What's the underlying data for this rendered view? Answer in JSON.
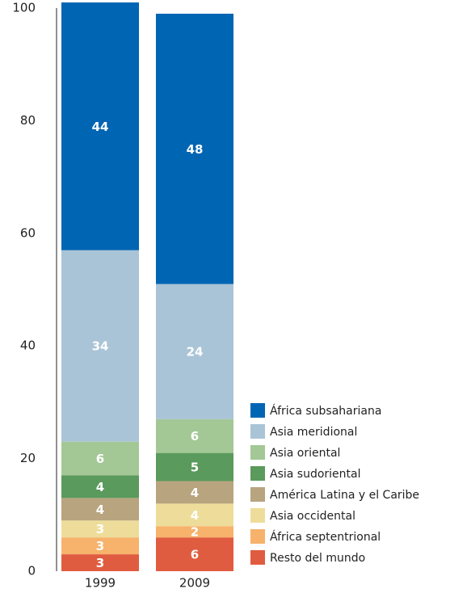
{
  "chart_data": {
    "type": "stacked_bar",
    "categories": [
      "1999",
      "2009"
    ],
    "series": [
      {
        "name": "Resto del mundo",
        "color": "#e05c40",
        "values": [
          3,
          6
        ]
      },
      {
        "name": "África septentrional",
        "color": "#f7b26b",
        "values": [
          3,
          2
        ]
      },
      {
        "name": "Asia occidental",
        "color": "#eedd9a",
        "values": [
          3,
          4
        ]
      },
      {
        "name": "América Latina y el Caribe",
        "color": "#b8a47e",
        "values": [
          4,
          4
        ]
      },
      {
        "name": "Asia sudoriental",
        "color": "#5a9a5c",
        "values": [
          4,
          5
        ]
      },
      {
        "name": "Asia oriental",
        "color": "#a3c795",
        "values": [
          6,
          6
        ]
      },
      {
        "name": "Asia meridional",
        "color": "#a9c4d6",
        "values": [
          34,
          24
        ]
      },
      {
        "name": "África subsahariana",
        "color": "#0065b3",
        "values": [
          44,
          48
        ]
      }
    ],
    "ylim": [
      0,
      100
    ],
    "yticks": [
      0,
      20,
      40,
      60,
      80,
      100
    ],
    "grid": false
  }
}
